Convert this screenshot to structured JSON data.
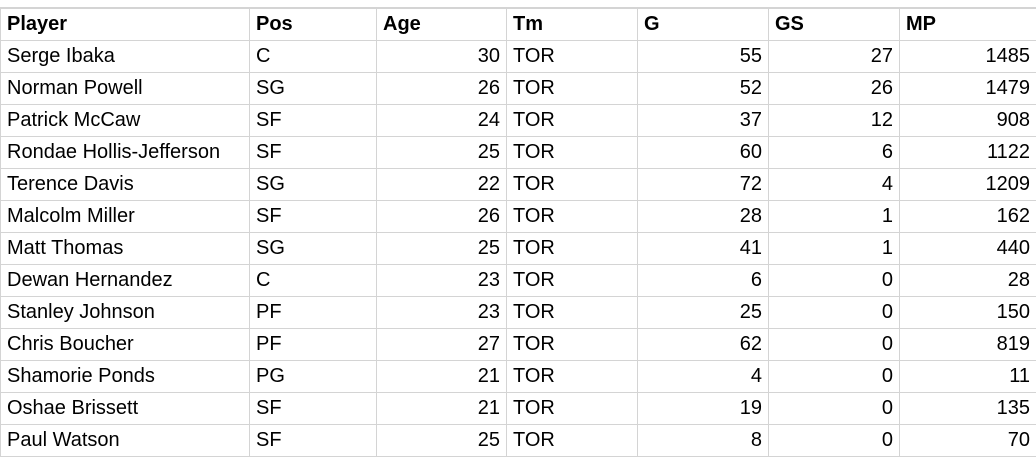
{
  "columns": [
    "Player",
    "Pos",
    "Age",
    "Tm",
    "G",
    "GS",
    "MP"
  ],
  "rows": [
    [
      "Serge Ibaka",
      "C",
      "30",
      "TOR",
      "55",
      "27",
      "1485"
    ],
    [
      "Norman Powell",
      "SG",
      "26",
      "TOR",
      "52",
      "26",
      "1479"
    ],
    [
      "Patrick McCaw",
      "SF",
      "24",
      "TOR",
      "37",
      "12",
      "908"
    ],
    [
      "Rondae Hollis-Jefferson",
      "SF",
      "25",
      "TOR",
      "60",
      "6",
      "1122"
    ],
    [
      "Terence Davis",
      "SG",
      "22",
      "TOR",
      "72",
      "4",
      "1209"
    ],
    [
      "Malcolm Miller",
      "SF",
      "26",
      "TOR",
      "28",
      "1",
      "162"
    ],
    [
      "Matt Thomas",
      "SG",
      "25",
      "TOR",
      "41",
      "1",
      "440"
    ],
    [
      "Dewan Hernandez",
      "C",
      "23",
      "TOR",
      "6",
      "0",
      "28"
    ],
    [
      "Stanley Johnson",
      "PF",
      "23",
      "TOR",
      "25",
      "0",
      "150"
    ],
    [
      "Chris Boucher",
      "PF",
      "27",
      "TOR",
      "62",
      "0",
      "819"
    ],
    [
      "Shamorie Ponds",
      "PG",
      "21",
      "TOR",
      "4",
      "0",
      "11"
    ],
    [
      "Oshae Brissett",
      "SF",
      "21",
      "TOR",
      "19",
      "0",
      "135"
    ],
    [
      "Paul Watson",
      "SF",
      "25",
      "TOR",
      "8",
      "0",
      "70"
    ]
  ]
}
